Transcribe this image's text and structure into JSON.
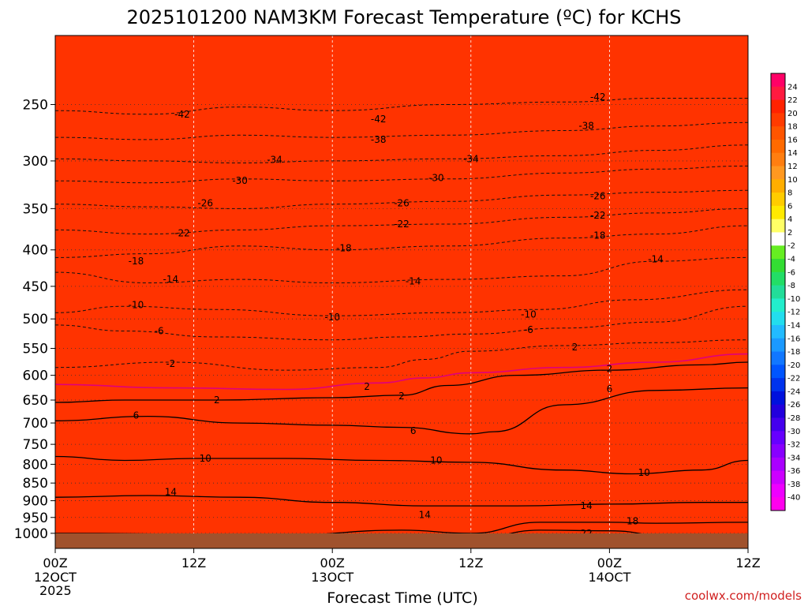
{
  "chart_data": {
    "type": "heatmap",
    "title": "2025101200 NAM3KM Forecast Temperature (ºC) for KCHS",
    "xlabel": "Forecast Time (UTC)",
    "ylabel": "",
    "credit": "coolwx.com/models",
    "x_range_hours": [
      0,
      60
    ],
    "y_range_hpa": [
      1050,
      200
    ],
    "y_scale": "log-pressure",
    "x_ticks": [
      {
        "hour": 0,
        "label": "00Z",
        "sub": [
          "12OCT",
          "2025"
        ]
      },
      {
        "hour": 12,
        "label": "12Z",
        "sub": []
      },
      {
        "hour": 24,
        "label": "00Z",
        "sub": [
          "13OCT"
        ]
      },
      {
        "hour": 36,
        "label": "12Z",
        "sub": []
      },
      {
        "hour": 48,
        "label": "00Z",
        "sub": [
          "14OCT"
        ]
      },
      {
        "hour": 60,
        "label": "12Z",
        "sub": []
      }
    ],
    "y_ticks": [
      1000,
      950,
      900,
      850,
      800,
      750,
      700,
      650,
      600,
      550,
      500,
      450,
      400,
      350,
      300,
      250
    ],
    "colorbar": {
      "labels": [
        "24",
        "22",
        "20",
        "18",
        "16",
        "14",
        "12",
        "10",
        "8",
        "6",
        "4",
        "2",
        "-2",
        "-4",
        "-6",
        "-8",
        "-10",
        "-12",
        "-14",
        "-16",
        "-18",
        "-20",
        "-22",
        "-24",
        "-26",
        "-28",
        "-30",
        "-32",
        "-34",
        "-36",
        "-38",
        "-40"
      ],
      "colors": [
        "#ff0066",
        "#ff1a40",
        "#ff2200",
        "#ff3b00",
        "#ff5500",
        "#ff6a00",
        "#ff7e10",
        "#ff9820",
        "#ffae00",
        "#ffcc00",
        "#ffea00",
        "#ffff66",
        "#ffffff",
        "#66ee22",
        "#33dd33",
        "#22dd66",
        "#22dd99",
        "#22eecc",
        "#22ddee",
        "#22bbff",
        "#1a99ff",
        "#1177ff",
        "#0055ff",
        "#0033ee",
        "#0011dd",
        "#2200dd",
        "#4400ee",
        "#6600ff",
        "#8800ff",
        "#aa00ff",
        "#cc00ff",
        "#ee00ff",
        "#ff00ee"
      ]
    },
    "isotherms": [
      {
        "temp": 22,
        "style": "solid",
        "points": [
          [
            36,
            1020
          ],
          [
            42,
            990
          ],
          [
            48,
            992
          ],
          [
            54,
            1015
          ]
        ]
      },
      {
        "temp": 18,
        "style": "solid",
        "points": [
          [
            0,
            1000
          ],
          [
            20,
            1005
          ],
          [
            30,
            990
          ],
          [
            36,
            1000
          ],
          [
            42,
            965
          ],
          [
            48,
            965
          ],
          [
            52,
            968
          ],
          [
            60,
            965
          ]
        ]
      },
      {
        "temp": 14,
        "style": "solid",
        "points": [
          [
            0,
            890
          ],
          [
            8,
            885
          ],
          [
            16,
            890
          ],
          [
            24,
            905
          ],
          [
            32,
            915
          ],
          [
            40,
            915
          ],
          [
            48,
            910
          ],
          [
            56,
            905
          ],
          [
            60,
            905
          ]
        ]
      },
      {
        "temp": 10,
        "style": "solid",
        "points": [
          [
            0,
            780
          ],
          [
            6,
            790
          ],
          [
            12,
            785
          ],
          [
            20,
            785
          ],
          [
            28,
            790
          ],
          [
            36,
            795
          ],
          [
            44,
            815
          ],
          [
            50,
            825
          ],
          [
            56,
            815
          ],
          [
            60,
            790
          ]
        ]
      },
      {
        "temp": 6,
        "style": "solid",
        "points": [
          [
            0,
            695
          ],
          [
            8,
            685
          ],
          [
            16,
            700
          ],
          [
            24,
            705
          ],
          [
            30,
            710
          ],
          [
            36,
            725
          ],
          [
            38,
            720
          ],
          [
            44,
            660
          ],
          [
            52,
            630
          ],
          [
            60,
            625
          ]
        ]
      },
      {
        "temp": 2,
        "style": "solid",
        "points": [
          [
            0,
            655
          ],
          [
            6,
            650
          ],
          [
            14,
            650
          ],
          [
            24,
            645
          ],
          [
            30,
            640
          ],
          [
            34,
            620
          ],
          [
            40,
            600
          ],
          [
            48,
            590
          ],
          [
            56,
            580
          ],
          [
            60,
            575
          ]
        ]
      },
      {
        "temp": 0,
        "style": "freezing",
        "points": [
          [
            0,
            618
          ],
          [
            10,
            625
          ],
          [
            20,
            628
          ],
          [
            28,
            615
          ],
          [
            32,
            605
          ],
          [
            36,
            595
          ],
          [
            44,
            585
          ],
          [
            52,
            575
          ],
          [
            60,
            560
          ]
        ]
      },
      {
        "temp": -2,
        "style": "dashed",
        "points": [
          [
            0,
            585
          ],
          [
            10,
            575
          ],
          [
            20,
            590
          ],
          [
            28,
            585
          ],
          [
            32,
            570
          ],
          [
            36,
            555
          ],
          [
            44,
            545
          ],
          [
            52,
            540
          ],
          [
            60,
            535
          ]
        ]
      },
      {
        "temp": -6,
        "style": "dashed",
        "points": [
          [
            0,
            510
          ],
          [
            6,
            520
          ],
          [
            14,
            530
          ],
          [
            24,
            535
          ],
          [
            30,
            530
          ],
          [
            36,
            525
          ],
          [
            44,
            515
          ],
          [
            52,
            505
          ],
          [
            60,
            480
          ]
        ]
      },
      {
        "temp": -10,
        "style": "dashed",
        "points": [
          [
            0,
            490
          ],
          [
            6,
            480
          ],
          [
            14,
            485
          ],
          [
            24,
            495
          ],
          [
            34,
            490
          ],
          [
            42,
            485
          ],
          [
            50,
            470
          ],
          [
            60,
            455
          ]
        ]
      },
      {
        "temp": -14,
        "style": "dashed",
        "points": [
          [
            0,
            430
          ],
          [
            8,
            445
          ],
          [
            16,
            440
          ],
          [
            24,
            445
          ],
          [
            34,
            440
          ],
          [
            44,
            435
          ],
          [
            52,
            415
          ],
          [
            60,
            410
          ]
        ]
      },
      {
        "temp": -18,
        "style": "dashed",
        "points": [
          [
            0,
            410
          ],
          [
            8,
            405
          ],
          [
            16,
            395
          ],
          [
            24,
            400
          ],
          [
            34,
            395
          ],
          [
            44,
            385
          ],
          [
            52,
            380
          ],
          [
            60,
            370
          ]
        ]
      },
      {
        "temp": -22,
        "style": "dashed",
        "points": [
          [
            0,
            375
          ],
          [
            8,
            380
          ],
          [
            16,
            375
          ],
          [
            24,
            370
          ],
          [
            34,
            368
          ],
          [
            44,
            360
          ],
          [
            52,
            355
          ],
          [
            60,
            350
          ]
        ]
      },
      {
        "temp": -26,
        "style": "dashed",
        "points": [
          [
            0,
            345
          ],
          [
            8,
            348
          ],
          [
            16,
            350
          ],
          [
            24,
            345
          ],
          [
            34,
            342
          ],
          [
            44,
            335
          ],
          [
            52,
            332
          ],
          [
            60,
            330
          ]
        ]
      },
      {
        "temp": -30,
        "style": "dashed",
        "points": [
          [
            0,
            320
          ],
          [
            8,
            322
          ],
          [
            16,
            318
          ],
          [
            24,
            320
          ],
          [
            34,
            318
          ],
          [
            44,
            312
          ],
          [
            52,
            308
          ],
          [
            60,
            305
          ]
        ]
      },
      {
        "temp": -34,
        "style": "dashed",
        "points": [
          [
            0,
            298
          ],
          [
            8,
            300
          ],
          [
            16,
            302
          ],
          [
            24,
            300
          ],
          [
            34,
            298
          ],
          [
            44,
            295
          ],
          [
            52,
            290
          ],
          [
            60,
            285
          ]
        ]
      },
      {
        "temp": -38,
        "style": "dashed",
        "points": [
          [
            0,
            278
          ],
          [
            8,
            280
          ],
          [
            16,
            276
          ],
          [
            24,
            278
          ],
          [
            34,
            276
          ],
          [
            44,
            272
          ],
          [
            52,
            268
          ],
          [
            60,
            265
          ]
        ]
      },
      {
        "temp": -42,
        "style": "dashed",
        "points": [
          [
            0,
            255
          ],
          [
            8,
            258
          ],
          [
            16,
            252
          ],
          [
            24,
            255
          ],
          [
            34,
            250
          ],
          [
            44,
            248
          ],
          [
            52,
            245
          ],
          [
            60,
            245
          ]
        ]
      }
    ],
    "contour_labels": [
      {
        "text": "22",
        "hour": 46,
        "hpa": 1000
      },
      {
        "text": "18",
        "hour": 50,
        "hpa": 962
      },
      {
        "text": "14",
        "hour": 10,
        "hpa": 875
      },
      {
        "text": "14",
        "hour": 32,
        "hpa": 942
      },
      {
        "text": "14",
        "hour": 46,
        "hpa": 915
      },
      {
        "text": "10",
        "hour": 13,
        "hpa": 785
      },
      {
        "text": "10",
        "hour": 33,
        "hpa": 790
      },
      {
        "text": "10",
        "hour": 51,
        "hpa": 822
      },
      {
        "text": "6",
        "hour": 7,
        "hpa": 683
      },
      {
        "text": "6",
        "hour": 31,
        "hpa": 718
      },
      {
        "text": "6",
        "hour": 48,
        "hpa": 627
      },
      {
        "text": "2",
        "hour": 14,
        "hpa": 650
      },
      {
        "text": "2",
        "hour": 27,
        "hpa": 622
      },
      {
        "text": "2",
        "hour": 30,
        "hpa": 642
      },
      {
        "text": "2",
        "hour": 45,
        "hpa": 548
      },
      {
        "text": "2",
        "hour": 48,
        "hpa": 588
      },
      {
        "text": "-2",
        "hour": 10,
        "hpa": 578
      },
      {
        "text": "-6",
        "hour": 9,
        "hpa": 520
      },
      {
        "text": "-6",
        "hour": 41,
        "hpa": 518
      },
      {
        "text": "-10",
        "hour": 7,
        "hpa": 478
      },
      {
        "text": "-10",
        "hour": 24,
        "hpa": 497
      },
      {
        "text": "-10",
        "hour": 41,
        "hpa": 493
      },
      {
        "text": "-14",
        "hour": 10,
        "hpa": 440
      },
      {
        "text": "-14",
        "hour": 31,
        "hpa": 443
      },
      {
        "text": "-14",
        "hour": 52,
        "hpa": 412
      },
      {
        "text": "-18",
        "hour": 7,
        "hpa": 415
      },
      {
        "text": "-18",
        "hour": 25,
        "hpa": 398
      },
      {
        "text": "-18",
        "hour": 47,
        "hpa": 382
      },
      {
        "text": "-22",
        "hour": 11,
        "hpa": 379
      },
      {
        "text": "-22",
        "hour": 30,
        "hpa": 368
      },
      {
        "text": "-22",
        "hour": 47,
        "hpa": 358
      },
      {
        "text": "-26",
        "hour": 13,
        "hpa": 344
      },
      {
        "text": "-26",
        "hour": 30,
        "hpa": 344
      },
      {
        "text": "-26",
        "hour": 47,
        "hpa": 336
      },
      {
        "text": "-30",
        "hour": 16,
        "hpa": 320
      },
      {
        "text": "-30",
        "hour": 33,
        "hpa": 317
      },
      {
        "text": "-34",
        "hour": 19,
        "hpa": 299
      },
      {
        "text": "-34",
        "hour": 36,
        "hpa": 298
      },
      {
        "text": "-38",
        "hour": 28,
        "hpa": 280
      },
      {
        "text": "-38",
        "hour": 46,
        "hpa": 268
      },
      {
        "text": "-42",
        "hour": 11,
        "hpa": 258
      },
      {
        "text": "-42",
        "hour": 28,
        "hpa": 262
      },
      {
        "text": "-42",
        "hour": 47,
        "hpa": 244
      }
    ],
    "background_stops": [
      {
        "hpa": 1050,
        "color": "#ff3300"
      },
      {
        "hpa": 1000,
        "color": "#ff3b00"
      },
      {
        "hpa": 950,
        "color": "#ff5500"
      },
      {
        "hpa": 900,
        "color": "#ff6a00"
      },
      {
        "hpa": 850,
        "color": "#ff7e10"
      },
      {
        "hpa": 780,
        "color": "#ff9820"
      },
      {
        "hpa": 720,
        "color": "#ffae00"
      },
      {
        "hpa": 680,
        "color": "#ffcc00"
      },
      {
        "hpa": 650,
        "color": "#ffee00"
      },
      {
        "hpa": 628,
        "color": "#ffff66"
      },
      {
        "hpa": 615,
        "color": "#ffffff"
      },
      {
        "hpa": 590,
        "color": "#ffffff"
      },
      {
        "hpa": 575,
        "color": "#66ee22"
      },
      {
        "hpa": 530,
        "color": "#44dd44"
      },
      {
        "hpa": 495,
        "color": "#22dd99"
      },
      {
        "hpa": 460,
        "color": "#22eedd"
      },
      {
        "hpa": 430,
        "color": "#22bbff"
      },
      {
        "hpa": 400,
        "color": "#1188ff"
      },
      {
        "hpa": 365,
        "color": "#0044ee"
      },
      {
        "hpa": 340,
        "color": "#0011dd"
      },
      {
        "hpa": 315,
        "color": "#4400ee"
      },
      {
        "hpa": 295,
        "color": "#7700ff"
      },
      {
        "hpa": 275,
        "color": "#aa00ff"
      },
      {
        "hpa": 260,
        "color": "#dd00ff"
      },
      {
        "hpa": 248,
        "color": "#ff00ee"
      },
      {
        "hpa": 200,
        "color": "#ff00ee"
      }
    ],
    "ground_color": "#a0522d",
    "surface_hpa": 1020
  }
}
